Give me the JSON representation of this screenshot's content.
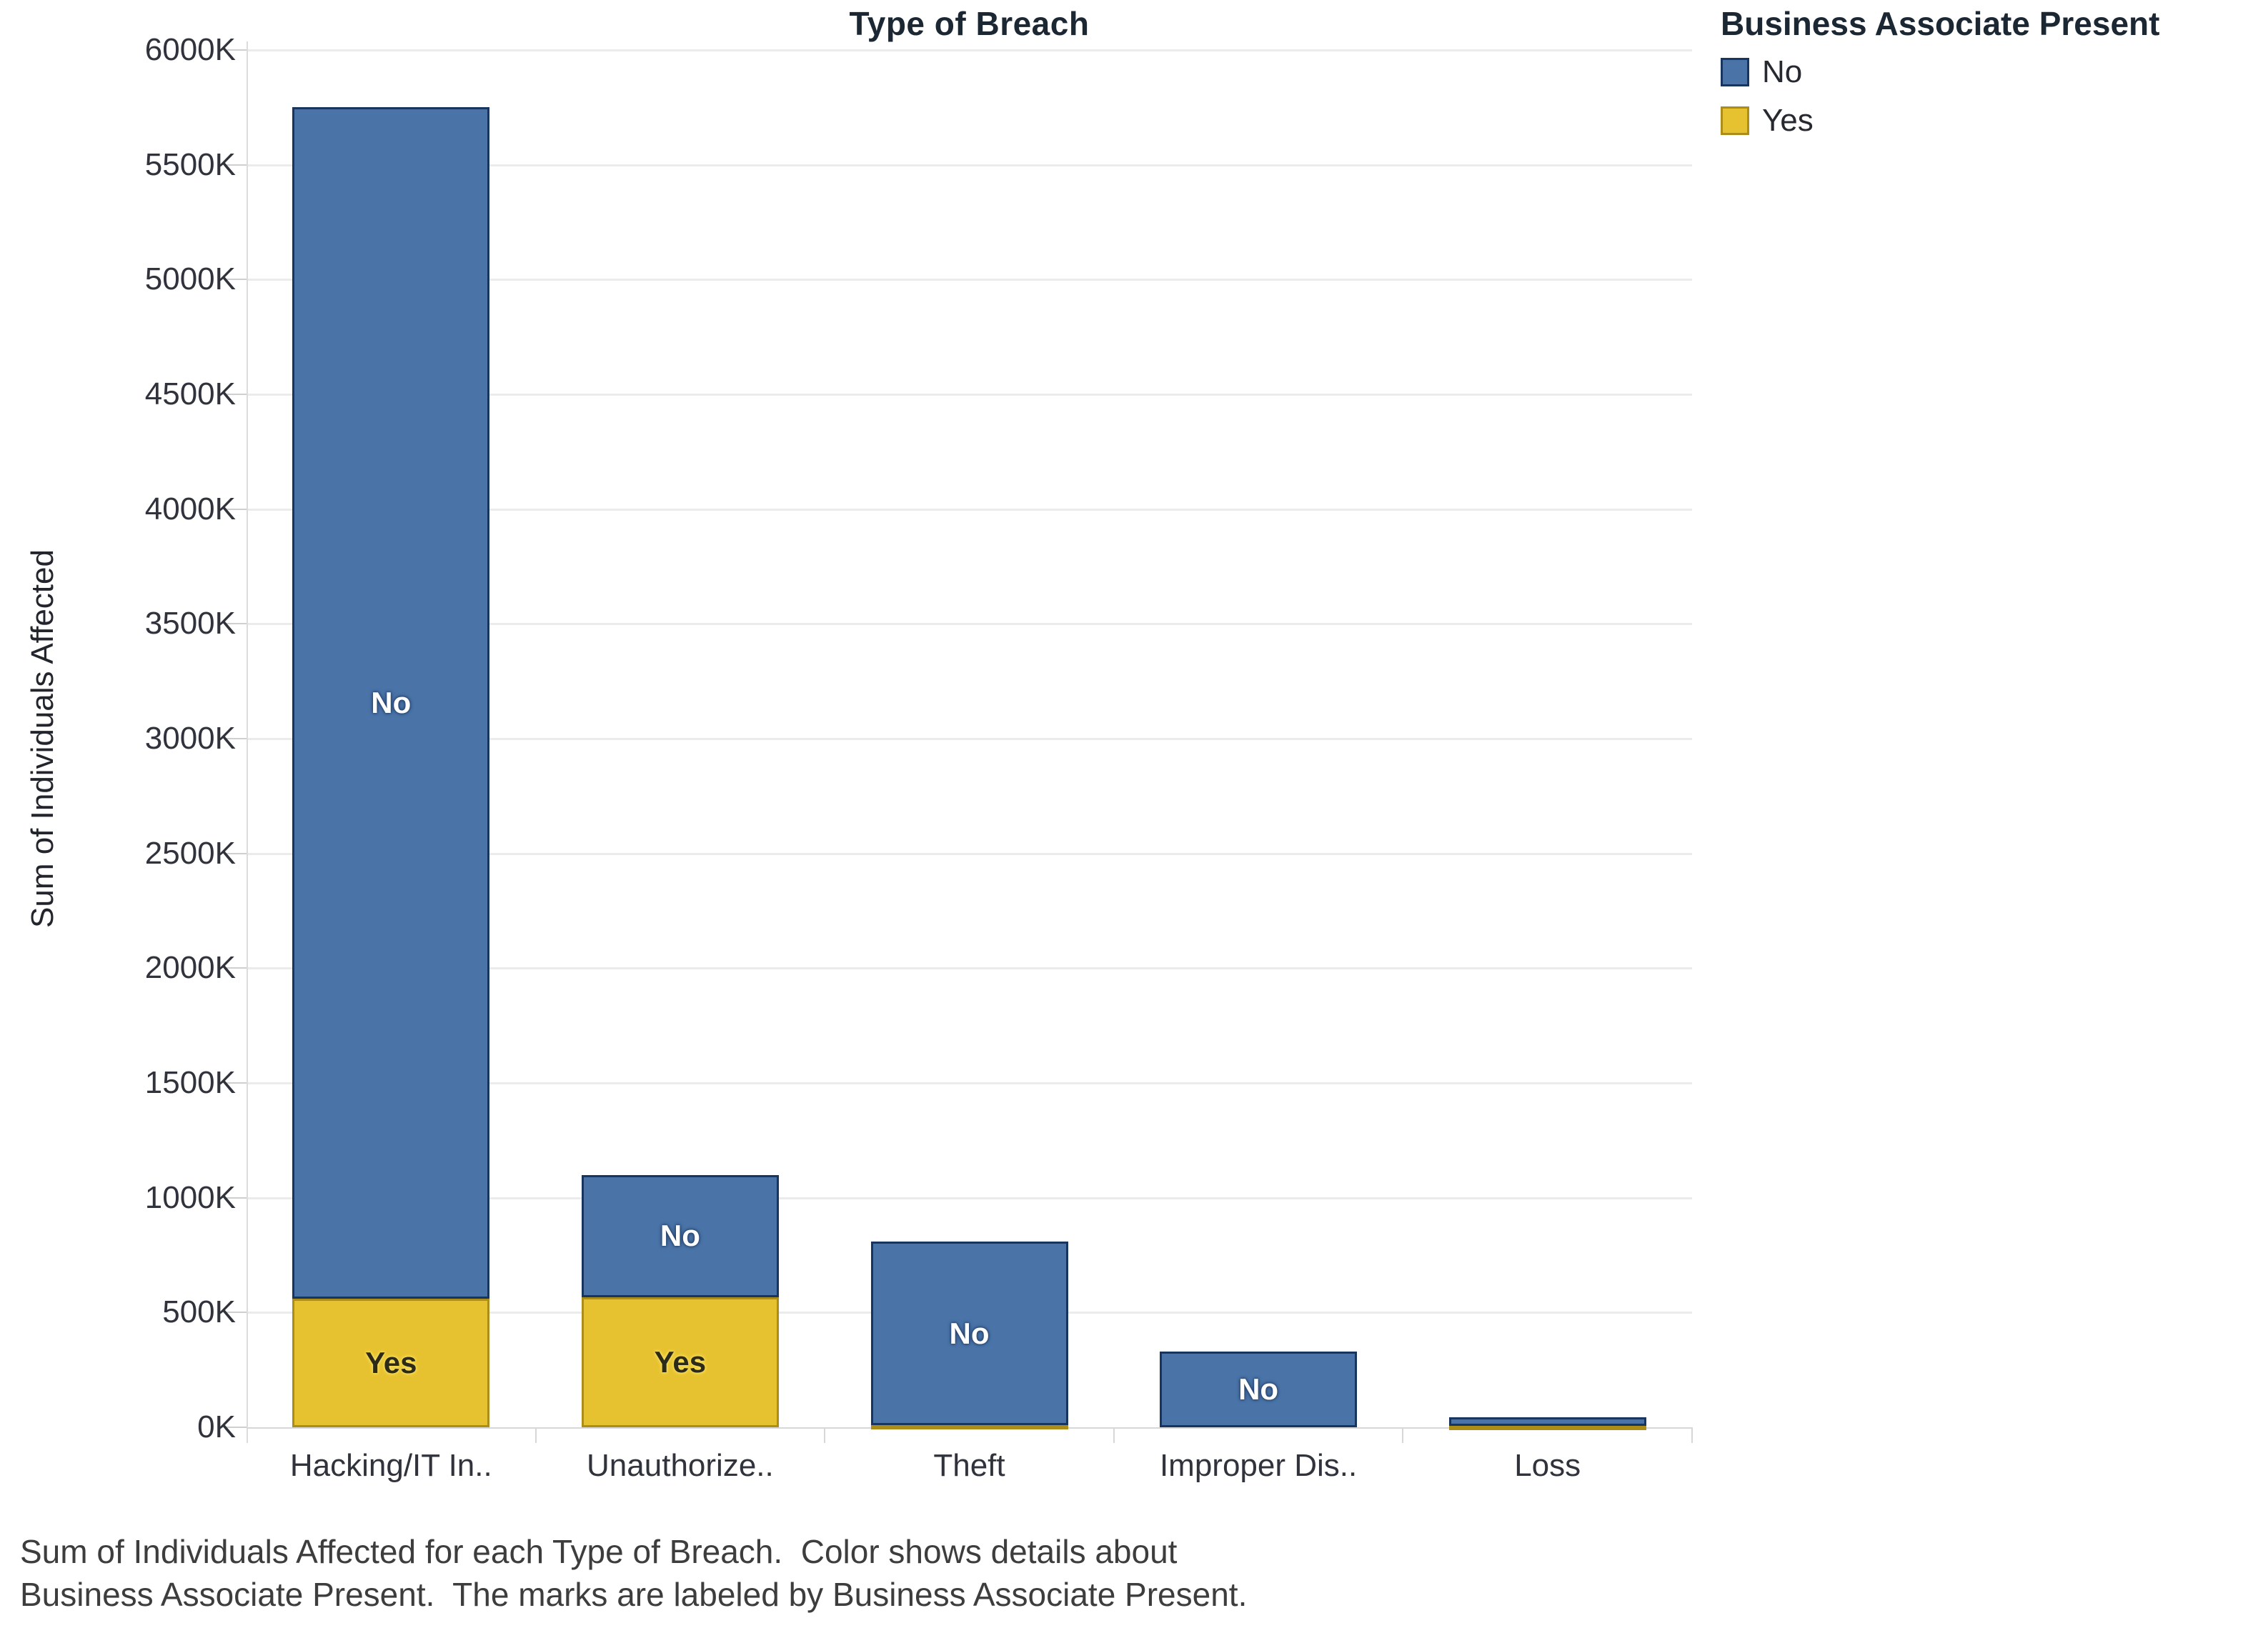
{
  "title": "Type of Breach",
  "y_axis": {
    "label": "Sum of Individuals Affected",
    "ticks": [
      "0K",
      "500K",
      "1000K",
      "1500K",
      "2000K",
      "2500K",
      "3000K",
      "3500K",
      "4000K",
      "4500K",
      "5000K",
      "5500K",
      "6000K"
    ]
  },
  "x_axis": {
    "categories": [
      "Hacking/IT In..",
      "Unauthorize..",
      "Theft",
      "Improper Dis..",
      "Loss"
    ]
  },
  "legend": {
    "title": "Business Associate Present",
    "items": [
      {
        "label": "No",
        "color": "#4a74a8",
        "border": "#17355e"
      },
      {
        "label": "Yes",
        "color": "#e7c230",
        "border": "#ab8d17"
      }
    ]
  },
  "caption": {
    "line1": "Sum of Individuals Affected for each Type of Breach.  Color shows details about",
    "line2": "Business Associate Present.  The marks are labeled by Business Associate Present."
  },
  "chart_data": {
    "type": "bar",
    "stacked": true,
    "title": "Type of Breach",
    "xlabel": "Type of Breach",
    "ylabel": "Sum of Individuals Affected",
    "unit": "K",
    "ylim": [
      0,
      6000
    ],
    "ytick_step": 500,
    "grid": true,
    "legend_position": "top-right",
    "categories": [
      "Hacking/IT In..",
      "Unauthorize..",
      "Theft",
      "Improper Dis..",
      "Loss"
    ],
    "series": [
      {
        "name": "Yes",
        "color": "#e7c230",
        "border": "#ab8d17",
        "values": [
          560,
          565,
          8,
          0,
          5
        ]
      },
      {
        "name": "No",
        "color": "#4a74a8",
        "border": "#17355e",
        "values": [
          5190,
          535,
          800,
          330,
          40
        ]
      }
    ],
    "totals": [
      5750,
      1100,
      808,
      330,
      45
    ],
    "mark_labels": [
      "No",
      "Yes"
    ]
  }
}
